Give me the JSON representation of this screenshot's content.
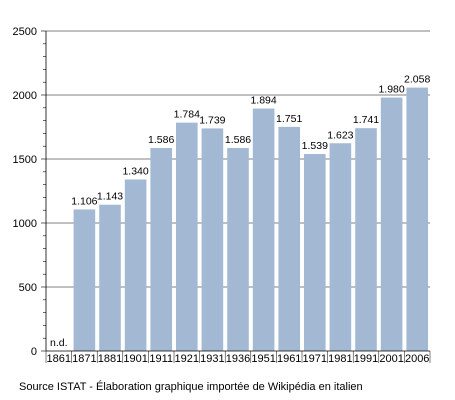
{
  "chart_data": {
    "type": "bar",
    "categories": [
      "1861",
      "1871",
      "1881",
      "1901",
      "1911",
      "1921",
      "1931",
      "1936",
      "1951",
      "1961",
      "1971",
      "1981",
      "1991",
      "2001",
      "2006"
    ],
    "values": [
      null,
      1106,
      1143,
      1340,
      1586,
      1784,
      1739,
      1586,
      1894,
      1751,
      1539,
      1623,
      1741,
      1980,
      2058
    ],
    "data_labels": [
      "n.d.",
      "1.106",
      "1.143",
      "1.340",
      "1.586",
      "1.784",
      "1.739",
      "1.586",
      "1.894",
      "1.751",
      "1.539",
      "1.623",
      "1.741",
      "1.980",
      "2.058"
    ],
    "ylim": [
      0,
      2500
    ],
    "yticks": [
      0,
      500,
      1000,
      1500,
      2000,
      2500
    ],
    "grid": true,
    "colors": {
      "bar": "#a3b9d3",
      "grid": "#000000"
    }
  },
  "source_note": "Source ISTAT - Élaboration graphique importée de Wikipédia en italien"
}
